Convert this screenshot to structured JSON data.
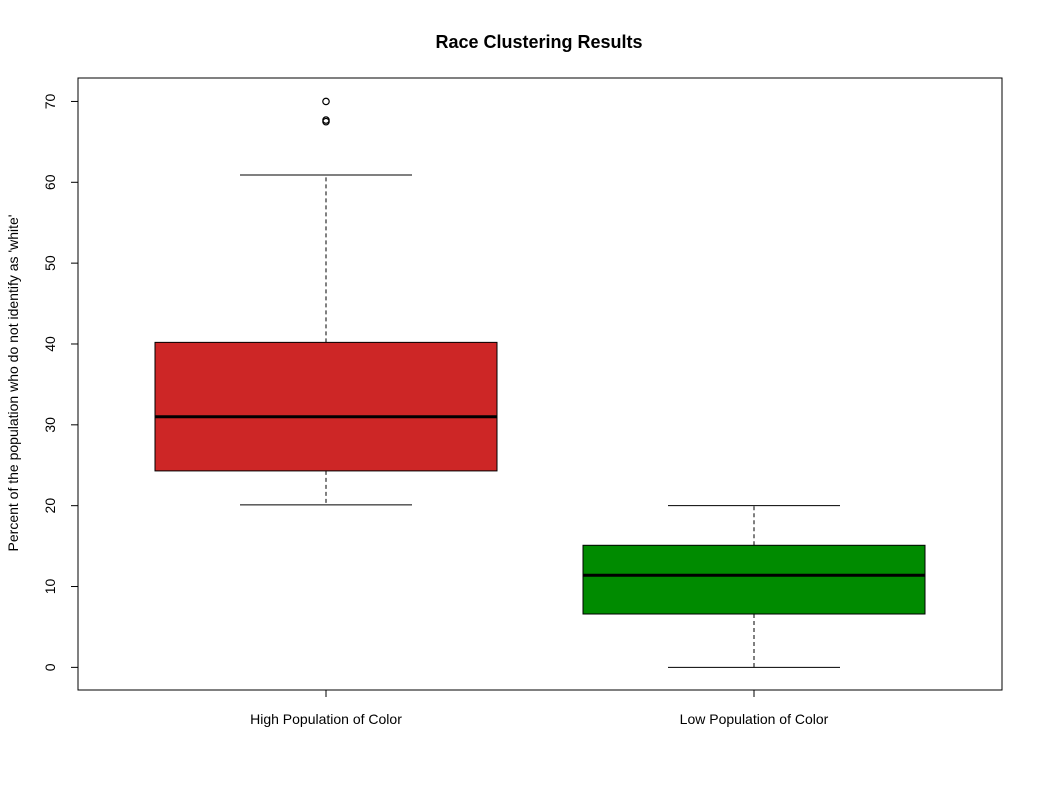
{
  "chart_data": {
    "type": "boxplot",
    "title": "Race Clustering Results",
    "xlabel": "",
    "ylabel": "Percent of the population who do not identify as 'white'",
    "ylim": [
      -2.8,
      72.9
    ],
    "yticks": [
      "0",
      "10",
      "20",
      "30",
      "40",
      "50",
      "60",
      "70"
    ],
    "categories": [
      "High Population of Color",
      "Low Population of Color"
    ],
    "boxes": [
      {
        "category": "High Population of Color",
        "whisker_low": 20.1,
        "q1": 24.3,
        "median": 31.0,
        "q3": 40.2,
        "whisker_high": 60.9,
        "outliers": [
          67.5,
          67.7,
          70.0
        ],
        "fill": "#cd2626"
      },
      {
        "category": "Low Population of Color",
        "whisker_low": 0.0,
        "q1": 6.6,
        "median": 11.4,
        "q3": 15.1,
        "whisker_high": 20.0,
        "outliers": [],
        "fill": "#008b00"
      }
    ],
    "grid": false,
    "legend": "none"
  }
}
